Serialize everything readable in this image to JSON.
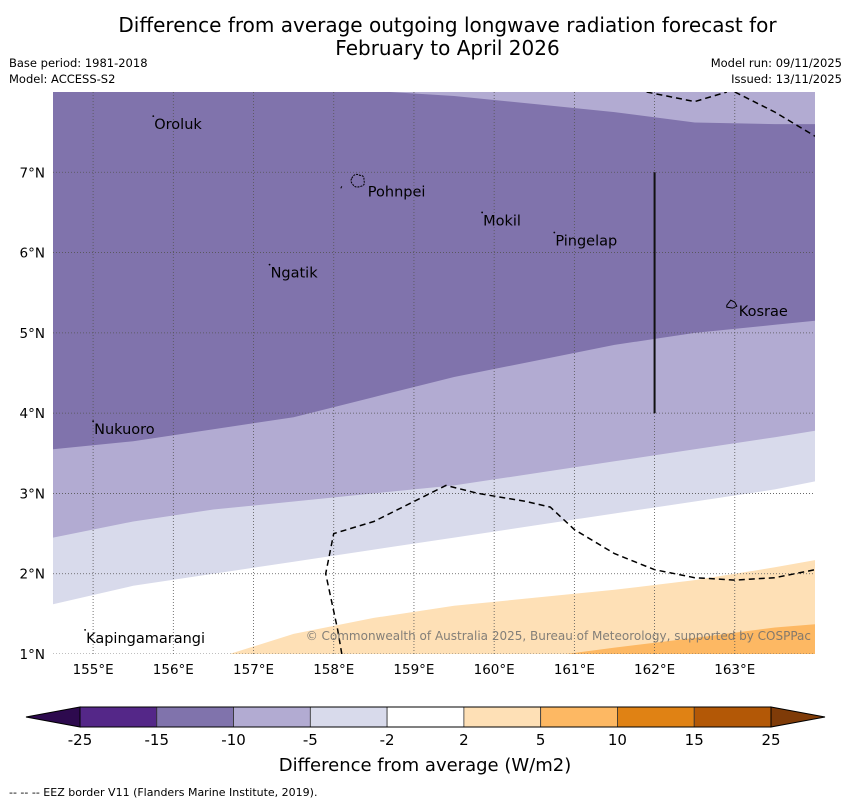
{
  "title_line1": "Difference from average outgoing longwave radiation forecast for",
  "title_line2": "February to April 2026",
  "base_period": "Base period: 1981-2018",
  "model": "Model: ACCESS-S2",
  "model_run": "Model run: 09/11/2025",
  "issued": "Issued: 13/11/2025",
  "copyright": "© Commonwealth of Australia 2025, Bureau of Meteorology, supported by COSPPac",
  "footer": "--  --  -- EEZ border V11 (Flanders Marine Institute, 2019).",
  "colorbar": {
    "title": "Difference from average (W/m2)",
    "ticks": [
      "-25",
      "-15",
      "-10",
      "-5",
      "-2",
      "2",
      "5",
      "10",
      "15",
      "25"
    ],
    "colors": [
      "#2d0a4e",
      "#542788",
      "#8073ac",
      "#b2abd2",
      "#d8daeb",
      "#ffffff",
      "#fee0b6",
      "#fdb863",
      "#e08214",
      "#b35806",
      "#7f3b08"
    ]
  },
  "chart_data": {
    "type": "heatmap",
    "title": "Difference from average outgoing longwave radiation forecast for February to April 2026",
    "units": "W/m2",
    "lon_range": [
      154.5,
      164.0
    ],
    "lat_range": [
      1.0,
      8.0
    ],
    "x_ticks": [
      "155°E",
      "156°E",
      "157°E",
      "158°E",
      "159°E",
      "160°E",
      "161°E",
      "162°E",
      "163°E"
    ],
    "x_tick_values": [
      155,
      156,
      157,
      158,
      159,
      160,
      161,
      162,
      163
    ],
    "y_ticks": [
      "1°N",
      "2°N",
      "3°N",
      "4°N",
      "5°N",
      "6°N",
      "7°N"
    ],
    "y_tick_values": [
      1,
      2,
      3,
      4,
      5,
      6,
      7
    ],
    "grid": true,
    "bands": [
      {
        "name": "-15 to -10",
        "color": "#8073ac",
        "lower_boundary": [
          [
            154.5,
            3.55
          ],
          [
            155.5,
            3.65
          ],
          [
            156.5,
            3.8
          ],
          [
            157.5,
            3.95
          ],
          [
            158.5,
            4.2
          ],
          [
            159.5,
            4.45
          ],
          [
            160.5,
            4.65
          ],
          [
            161.5,
            4.85
          ],
          [
            162.5,
            5.0
          ],
          [
            163.5,
            5.1
          ],
          [
            164.0,
            5.15
          ]
        ],
        "upper_boundary": [
          [
            154.5,
            8.0
          ],
          [
            158.7,
            8.0
          ],
          [
            159.5,
            7.95
          ],
          [
            160.5,
            7.85
          ],
          [
            161.5,
            7.75
          ],
          [
            162.5,
            7.62
          ],
          [
            163.5,
            7.6
          ],
          [
            164.0,
            7.6
          ]
        ]
      },
      {
        "name": "-10 to -5",
        "color": "#b2abd2",
        "lower_boundary": [
          [
            154.5,
            2.45
          ],
          [
            155.5,
            2.65
          ],
          [
            156.5,
            2.8
          ],
          [
            157.5,
            2.9
          ],
          [
            158.5,
            3.0
          ],
          [
            159.5,
            3.1
          ],
          [
            160.5,
            3.25
          ],
          [
            161.5,
            3.4
          ],
          [
            162.5,
            3.55
          ],
          [
            163.5,
            3.7
          ],
          [
            164.0,
            3.78
          ]
        ]
      },
      {
        "name": "-5 to -2",
        "color": "#d8daeb",
        "lower_boundary": [
          [
            154.5,
            1.62
          ],
          [
            155.5,
            1.85
          ],
          [
            156.5,
            2.0
          ],
          [
            157.5,
            2.15
          ],
          [
            158.5,
            2.3
          ],
          [
            159.5,
            2.45
          ],
          [
            160.5,
            2.6
          ],
          [
            161.5,
            2.75
          ],
          [
            162.5,
            2.9
          ],
          [
            163.5,
            3.05
          ],
          [
            164.0,
            3.15
          ]
        ]
      },
      {
        "name": "-2 to 2",
        "color": "#ffffff"
      },
      {
        "name": "2 to 5",
        "color": "#fee0b6",
        "upper_boundary": [
          [
            156.7,
            1.0
          ],
          [
            157.5,
            1.25
          ],
          [
            158.5,
            1.45
          ],
          [
            159.5,
            1.6
          ],
          [
            160.5,
            1.7
          ],
          [
            161.5,
            1.8
          ],
          [
            162.5,
            1.92
          ],
          [
            163.5,
            2.08
          ],
          [
            164.0,
            2.17
          ]
        ]
      },
      {
        "name": "5 to 10",
        "color": "#fdb863",
        "upper_boundary": [
          [
            160.9,
            1.0
          ],
          [
            161.5,
            1.08
          ],
          [
            162.5,
            1.2
          ],
          [
            163.5,
            1.33
          ],
          [
            164.0,
            1.37
          ]
        ]
      }
    ],
    "eez_border": [
      [
        [
          158.1,
          1.0
        ],
        [
          158.05,
          1.3
        ],
        [
          157.9,
          2.0
        ],
        [
          158.0,
          2.5
        ],
        [
          158.5,
          2.65
        ],
        [
          159.0,
          2.9
        ],
        [
          159.4,
          3.1
        ],
        [
          159.8,
          3.0
        ],
        [
          160.4,
          2.9
        ],
        [
          160.7,
          2.83
        ],
        [
          161.0,
          2.55
        ],
        [
          161.5,
          2.25
        ],
        [
          162.0,
          2.05
        ],
        [
          162.5,
          1.95
        ],
        [
          163.0,
          1.92
        ],
        [
          163.5,
          1.95
        ],
        [
          164.0,
          2.05
        ]
      ],
      [
        [
          161.9,
          8.0
        ],
        [
          162.5,
          7.88
        ],
        [
          162.9,
          8.0
        ]
      ],
      [
        [
          163.0,
          8.0
        ],
        [
          163.5,
          7.75
        ],
        [
          164.0,
          7.45
        ]
      ]
    ],
    "eez_segment_vertical": {
      "lon": 162.0,
      "lat_from": 4.0,
      "lat_to": 7.0
    },
    "places": [
      {
        "name": "Oroluk",
        "lon": 155.75,
        "lat": 7.65
      },
      {
        "name": "Pohnpei",
        "lon": 158.3,
        "lat": 6.85
      },
      {
        "name": "Mokil",
        "lon": 159.85,
        "lat": 6.45
      },
      {
        "name": "Pingelap",
        "lon": 160.75,
        "lat": 6.2
      },
      {
        "name": "Ngatik",
        "lon": 157.2,
        "lat": 5.8
      },
      {
        "name": "Kosrae",
        "lon": 163.0,
        "lat": 5.32
      },
      {
        "name": "Nukuoro",
        "lon": 155.0,
        "lat": 3.85
      },
      {
        "name": "Kapingamarangi",
        "lon": 154.9,
        "lat": 1.25
      }
    ]
  }
}
